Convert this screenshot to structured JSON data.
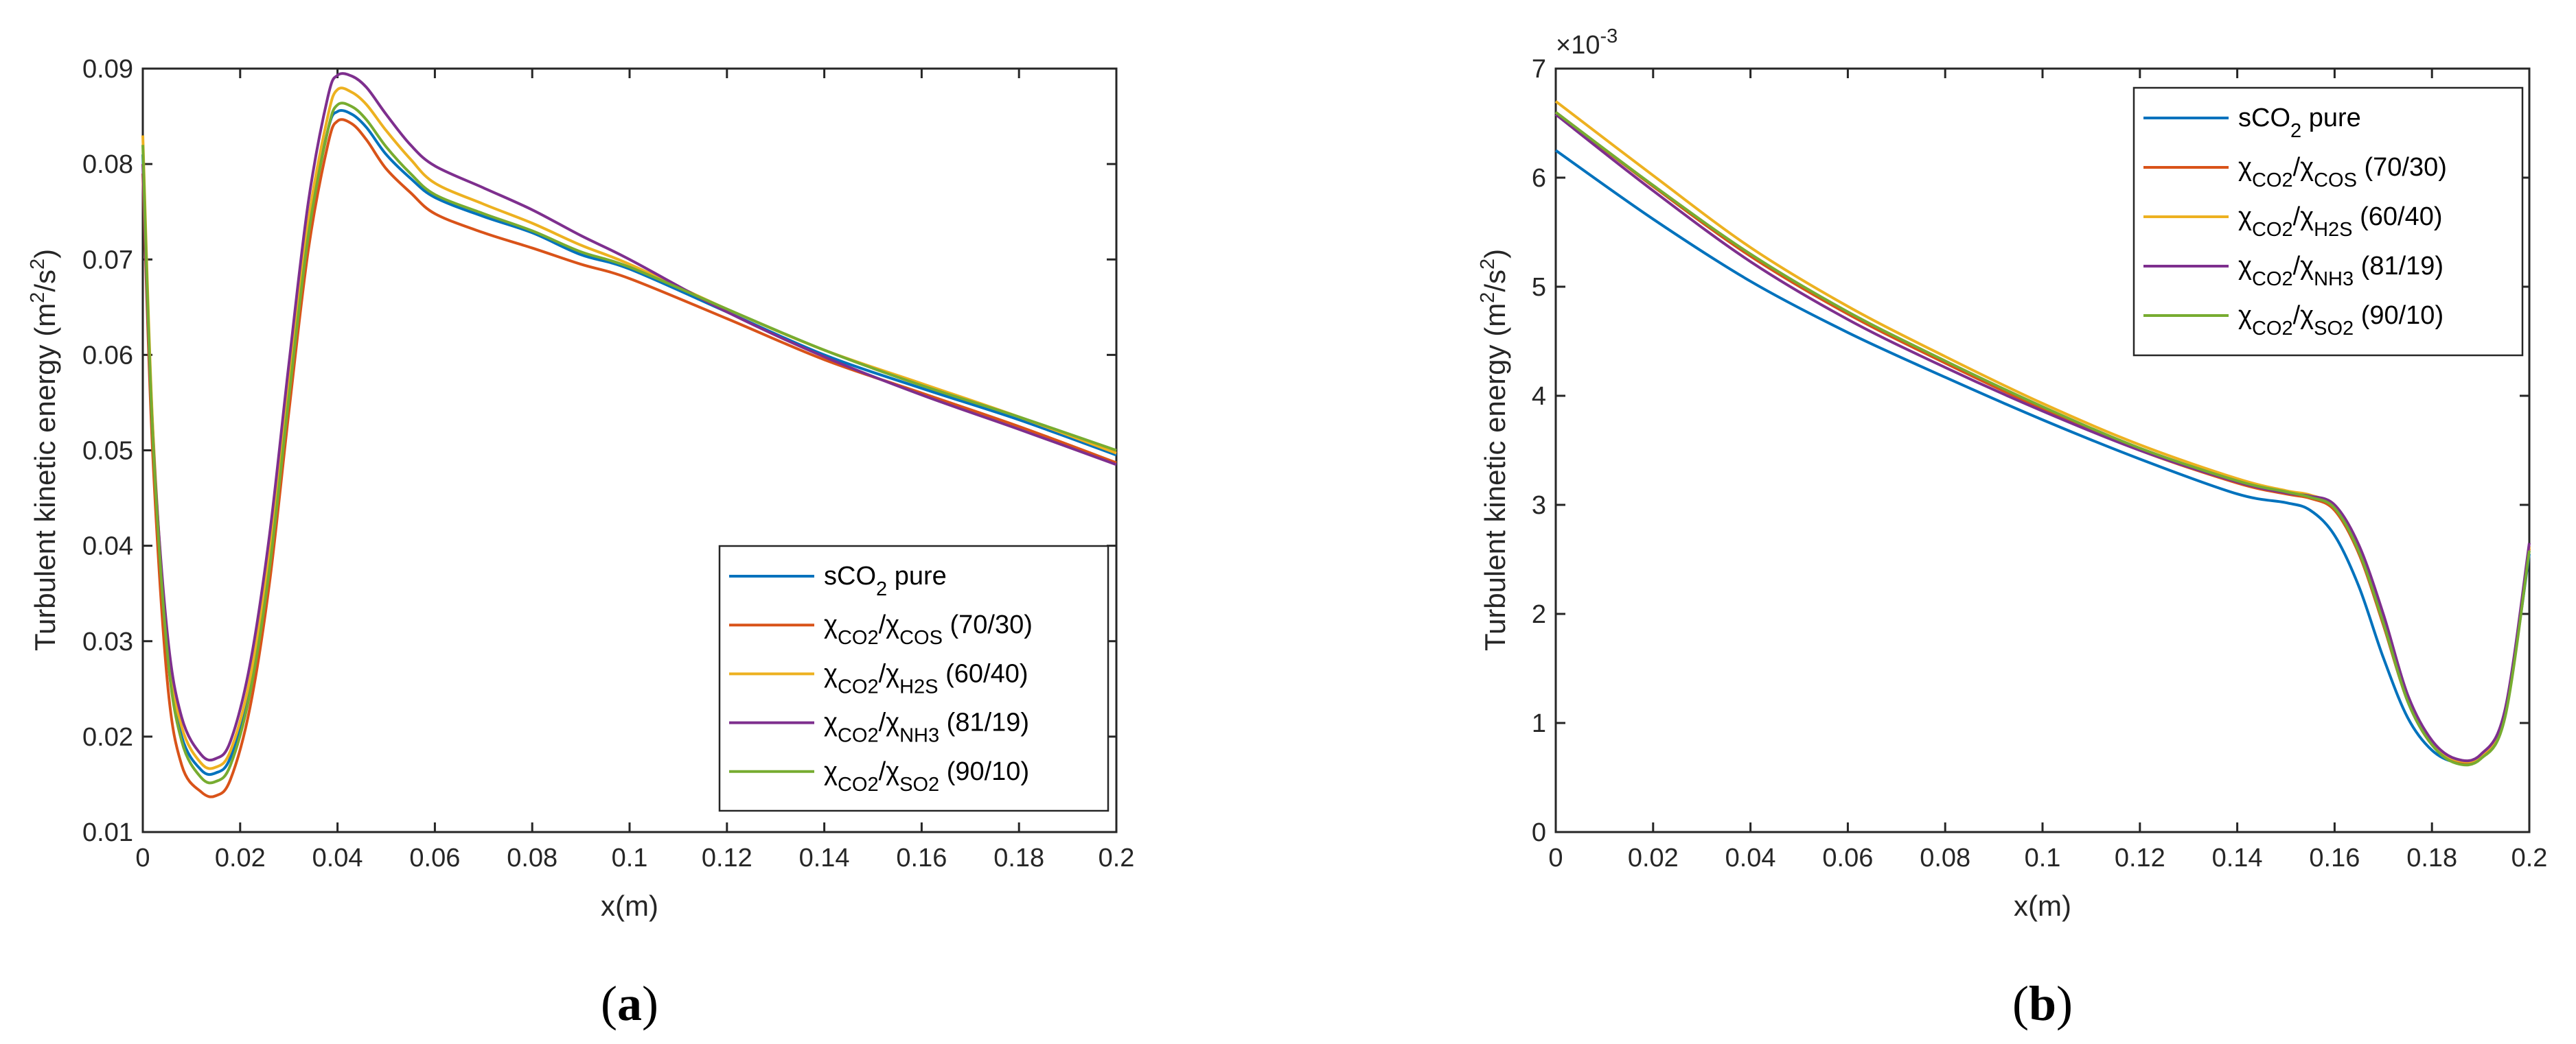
{
  "chart_data": [
    {
      "type": "line",
      "panel": "a",
      "panel_label": {
        "open": "(",
        "letter": "a",
        "close": ")"
      },
      "xlabel": "x(m)",
      "ylabel": {
        "main": "Turbulent kinetic energy (m",
        "sup1": "2",
        "mid": "/s",
        "sup2": "2",
        "end": ")"
      },
      "xlim": [
        0,
        0.2
      ],
      "ylim": [
        0.01,
        0.09
      ],
      "xticks": [
        0,
        0.02,
        0.04,
        0.06,
        0.08,
        0.1,
        0.12,
        0.14,
        0.16,
        0.18,
        0.2
      ],
      "xticklabels": [
        "0",
        "0.02",
        "0.04",
        "0.06",
        "0.08",
        "0.1",
        "0.12",
        "0.14",
        "0.16",
        "0.18",
        "0.2"
      ],
      "yticks": [
        0.01,
        0.02,
        0.03,
        0.04,
        0.05,
        0.06,
        0.07,
        0.08,
        0.09
      ],
      "yticklabels": [
        "0.01",
        "0.02",
        "0.03",
        "0.04",
        "0.05",
        "0.06",
        "0.07",
        "0.08",
        "0.09"
      ],
      "legend_position": "bottom-right",
      "x": [
        0,
        0.002,
        0.005,
        0.008,
        0.012,
        0.015,
        0.018,
        0.022,
        0.026,
        0.03,
        0.034,
        0.038,
        0.04,
        0.043,
        0.046,
        0.05,
        0.055,
        0.06,
        0.07,
        0.08,
        0.09,
        0.1,
        0.12,
        0.14,
        0.16,
        0.18,
        0.2
      ],
      "series": [
        {
          "name": "sCO2 pure",
          "color": "#0072BD",
          "values": [
            0.081,
            0.052,
            0.029,
            0.02,
            0.0165,
            0.0162,
            0.0178,
            0.025,
            0.038,
            0.056,
            0.073,
            0.0835,
            0.0855,
            0.0852,
            0.0838,
            0.081,
            0.0785,
            0.0765,
            0.0745,
            0.0728,
            0.0705,
            0.069,
            0.0645,
            0.06,
            0.0565,
            0.0532,
            0.0495
          ]
        },
        {
          "name": "χCO2/χCOS (70/30)",
          "color": "#D95319",
          "values": [
            0.079,
            0.05,
            0.026,
            0.017,
            0.0142,
            0.0138,
            0.0155,
            0.023,
            0.036,
            0.054,
            0.071,
            0.082,
            0.0845,
            0.0842,
            0.0825,
            0.0795,
            0.077,
            0.0748,
            0.0728,
            0.0712,
            0.0695,
            0.068,
            0.0638,
            0.0595,
            0.056,
            0.0525,
            0.0487
          ]
        },
        {
          "name": "χCO2/χH2S (60/40)",
          "color": "#EDB120",
          "values": [
            0.083,
            0.053,
            0.03,
            0.021,
            0.0172,
            0.0168,
            0.0185,
            0.026,
            0.039,
            0.057,
            0.074,
            0.085,
            0.0878,
            0.0875,
            0.0862,
            0.0835,
            0.0805,
            0.078,
            0.0758,
            0.0738,
            0.0715,
            0.0695,
            0.0648,
            0.0605,
            0.057,
            0.0535,
            0.0497
          ]
        },
        {
          "name": "χCO2/χNH3 (81/19)",
          "color": "#7E2F8E",
          "values": [
            0.08,
            0.052,
            0.031,
            0.022,
            0.0181,
            0.0177,
            0.0195,
            0.0275,
            0.041,
            0.059,
            0.076,
            0.087,
            0.0893,
            0.0892,
            0.088,
            0.0852,
            0.082,
            0.0798,
            0.0775,
            0.0752,
            0.0725,
            0.07,
            0.0645,
            0.0598,
            0.0558,
            0.0522,
            0.0485
          ]
        },
        {
          "name": "χCO2/χSO2 (90/10)",
          "color": "#77AC30",
          "values": [
            0.082,
            0.052,
            0.029,
            0.0195,
            0.0157,
            0.0153,
            0.017,
            0.0245,
            0.0375,
            0.0555,
            0.0725,
            0.0835,
            0.0862,
            0.086,
            0.0846,
            0.0818,
            0.079,
            0.0768,
            0.0748,
            0.073,
            0.0708,
            0.0692,
            0.0648,
            0.0605,
            0.0568,
            0.0535,
            0.05
          ]
        }
      ],
      "legend": [
        {
          "type": "plain",
          "text": "sCO",
          "sub": "2",
          "tail": " pure"
        },
        {
          "type": "chi",
          "chi": "χ",
          "sub1": "CO2",
          "mid": "/χ",
          "sub2": "COS",
          "tail": " (70/30)"
        },
        {
          "type": "chi",
          "chi": "χ",
          "sub1": "CO2",
          "mid": "/χ",
          "sub2": "H2S",
          "tail": " (60/40)"
        },
        {
          "type": "chi",
          "chi": "χ",
          "sub1": "CO2",
          "mid": "/χ",
          "sub2": "NH3",
          "tail": " (81/19)"
        },
        {
          "type": "chi",
          "chi": "χ",
          "sub1": "CO2",
          "mid": "/χ",
          "sub2": "SO2",
          "tail": " (90/10)"
        }
      ]
    },
    {
      "type": "line",
      "panel": "b",
      "panel_label": {
        "open": "(",
        "letter": "b",
        "close": ")"
      },
      "xlabel": "x(m)",
      "ylabel": {
        "main": "Turbulent kinetic energy (m",
        "sup1": "2",
        "mid": "/s",
        "sup2": "2",
        "end": ")"
      },
      "exponent": {
        "base": "×10",
        "power": "-3"
      },
      "xlim": [
        0,
        0.2
      ],
      "ylim": [
        0,
        7
      ],
      "xticks": [
        0,
        0.02,
        0.04,
        0.06,
        0.08,
        0.1,
        0.12,
        0.14,
        0.16,
        0.18,
        0.2
      ],
      "xticklabels": [
        "0",
        "0.02",
        "0.04",
        "0.06",
        "0.08",
        "0.1",
        "0.12",
        "0.14",
        "0.16",
        "0.18",
        "0.2"
      ],
      "yticks": [
        0,
        1,
        2,
        3,
        4,
        5,
        6,
        7
      ],
      "yticklabels": [
        "0",
        "1",
        "2",
        "3",
        "4",
        "5",
        "6",
        "7"
      ],
      "legend_position": "top-right",
      "x": [
        0,
        0.02,
        0.04,
        0.06,
        0.08,
        0.1,
        0.12,
        0.14,
        0.15,
        0.155,
        0.16,
        0.165,
        0.17,
        0.175,
        0.18,
        0.185,
        0.19,
        0.195,
        0.2
      ],
      "series": [
        {
          "name": "sCO2 pure",
          "color": "#0072BD",
          "values": [
            6.25,
            5.62,
            5.05,
            4.58,
            4.17,
            3.78,
            3.42,
            3.1,
            3.02,
            2.95,
            2.72,
            2.25,
            1.6,
            1.05,
            0.75,
            0.64,
            0.68,
            1.1,
            2.55
          ]
        },
        {
          "name": "χCO2/χCOS (70/30)",
          "color": "#D95319",
          "values": [
            6.6,
            5.92,
            5.28,
            4.75,
            4.3,
            3.88,
            3.5,
            3.2,
            3.1,
            3.06,
            2.95,
            2.55,
            1.9,
            1.2,
            0.8,
            0.65,
            0.68,
            1.08,
            2.6
          ]
        },
        {
          "name": "χCO2/χH2S (60/40)",
          "color": "#EDB120",
          "values": [
            6.7,
            6.02,
            5.36,
            4.82,
            4.36,
            3.93,
            3.55,
            3.24,
            3.13,
            3.09,
            2.98,
            2.58,
            1.95,
            1.22,
            0.82,
            0.66,
            0.7,
            1.1,
            2.62
          ]
        },
        {
          "name": "χCO2/χNH3 (81/19)",
          "color": "#7E2F8E",
          "values": [
            6.58,
            5.88,
            5.23,
            4.7,
            4.26,
            3.86,
            3.5,
            3.21,
            3.11,
            3.08,
            3.0,
            2.63,
            2.0,
            1.26,
            0.84,
            0.67,
            0.71,
            1.12,
            2.65
          ]
        },
        {
          "name": "χCO2/χSO2 (90/10)",
          "color": "#77AC30",
          "values": [
            6.6,
            5.93,
            5.3,
            4.77,
            4.32,
            3.9,
            3.52,
            3.22,
            3.12,
            3.07,
            2.97,
            2.57,
            1.92,
            1.2,
            0.8,
            0.63,
            0.67,
            1.05,
            2.58
          ]
        }
      ],
      "legend": [
        {
          "type": "plain",
          "text": "sCO",
          "sub": "2",
          "tail": " pure"
        },
        {
          "type": "chi",
          "chi": "χ",
          "sub1": "CO2",
          "mid": "/χ",
          "sub2": "COS",
          "tail": " (70/30)"
        },
        {
          "type": "chi",
          "chi": "χ",
          "sub1": "CO2",
          "mid": "/χ",
          "sub2": "H2S",
          "tail": " (60/40)"
        },
        {
          "type": "chi",
          "chi": "χ",
          "sub1": "CO2",
          "mid": "/χ",
          "sub2": "NH3",
          "tail": " (81/19)"
        },
        {
          "type": "chi",
          "chi": "χ",
          "sub1": "CO2",
          "mid": "/χ",
          "sub2": "SO2",
          "tail": " (90/10)"
        }
      ]
    }
  ]
}
